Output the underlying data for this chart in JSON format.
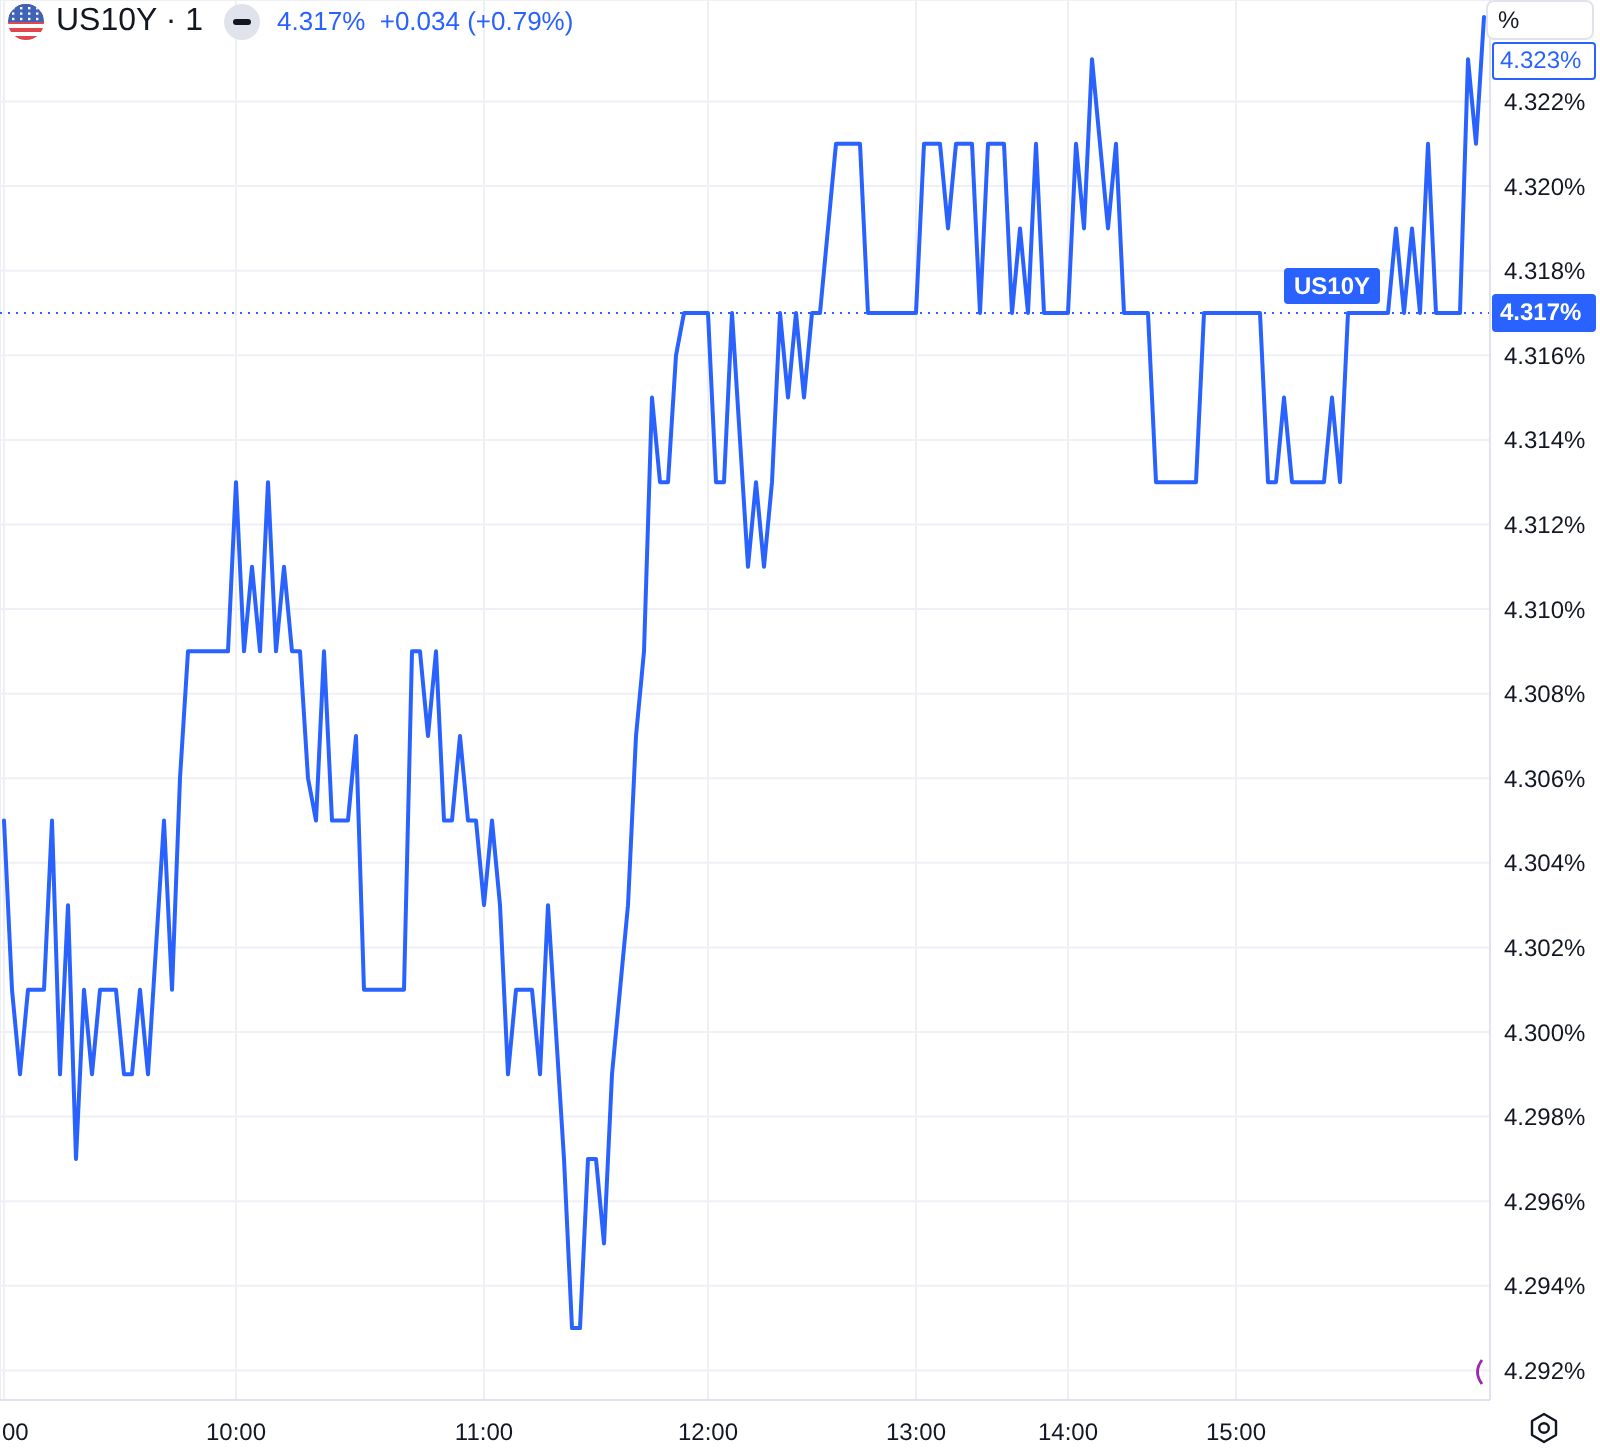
{
  "chart_data": {
    "type": "line",
    "title": "US10Y · 1",
    "subtitle": "4.317%  +0.034 (+0.79%)",
    "categories": [
      "00",
      null,
      null,
      null,
      null,
      null,
      null,
      null,
      null,
      null,
      null,
      null,
      null,
      null,
      null,
      null,
      null,
      null,
      null,
      null,
      null,
      null,
      null,
      null,
      null,
      null,
      null,
      null,
      null,
      "10:00",
      null,
      null,
      null,
      null,
      null,
      null,
      null,
      null,
      null,
      null,
      null,
      null,
      null,
      null,
      null,
      null,
      null,
      null,
      null,
      null,
      null,
      null,
      null,
      null,
      null,
      null,
      null,
      null,
      null,
      null,
      "11:00",
      null,
      null,
      null,
      null,
      null,
      null,
      null,
      null,
      null,
      null,
      null,
      null,
      null,
      null,
      null,
      null,
      null,
      null,
      null,
      null,
      null,
      null,
      null,
      null,
      null,
      null,
      null,
      "12:00",
      null,
      null,
      null,
      null,
      null,
      null,
      null,
      null,
      null,
      null,
      null,
      null,
      null,
      null,
      null,
      null,
      null,
      null,
      null,
      null,
      null,
      null,
      null,
      null,
      null,
      "13:00",
      null,
      null,
      null,
      null,
      null,
      null,
      null,
      null,
      null,
      null,
      null,
      null,
      null,
      null,
      null,
      null,
      null,
      null,
      "14:00",
      null,
      null,
      null,
      null,
      null,
      null,
      null,
      null,
      null,
      null,
      null,
      null,
      null,
      null,
      null,
      null,
      null,
      null,
      null,
      null,
      "15:00",
      null,
      null,
      null,
      null,
      null,
      null,
      null,
      null,
      null,
      null,
      null,
      null,
      null,
      null,
      null,
      null,
      null,
      null,
      null,
      null,
      null,
      null,
      null,
      null,
      null,
      null,
      null,
      null,
      null,
      null,
      null
    ],
    "series": [
      {
        "name": "US10Y",
        "color": "#2962ff",
        "values": [
          4.305,
          4.301,
          4.299,
          4.301,
          4.301,
          4.301,
          4.305,
          4.299,
          4.303,
          4.297,
          4.301,
          4.299,
          4.301,
          4.301,
          4.301,
          4.299,
          4.299,
          4.301,
          4.299,
          4.302,
          4.305,
          4.301,
          4.306,
          4.309,
          4.309,
          4.309,
          4.309,
          4.309,
          4.309,
          4.313,
          4.309,
          4.311,
          4.309,
          4.313,
          4.309,
          4.311,
          4.309,
          4.309,
          4.306,
          4.305,
          4.309,
          4.305,
          4.305,
          4.305,
          4.307,
          4.301,
          4.301,
          4.301,
          4.301,
          4.301,
          4.301,
          4.309,
          4.309,
          4.307,
          4.309,
          4.305,
          4.305,
          4.307,
          4.305,
          4.305,
          4.303,
          4.305,
          4.303,
          4.299,
          4.301,
          4.301,
          4.301,
          4.299,
          4.303,
          4.3,
          4.297,
          4.293,
          4.293,
          4.297,
          4.297,
          4.295,
          4.299,
          4.301,
          4.303,
          4.307,
          4.309,
          4.315,
          4.313,
          4.313,
          4.316,
          4.317,
          4.317,
          4.317,
          4.317,
          4.313,
          4.313,
          4.317,
          4.314,
          4.311,
          4.313,
          4.311,
          4.313,
          4.317,
          4.315,
          4.317,
          4.315,
          4.317,
          4.317,
          4.319,
          4.321,
          4.321,
          4.321,
          4.321,
          4.317,
          4.317,
          4.317,
          4.317,
          4.317,
          4.317,
          4.317,
          4.321,
          4.321,
          4.321,
          4.319,
          4.321,
          4.321,
          4.321,
          4.317,
          4.321,
          4.321,
          4.321,
          4.317,
          4.319,
          4.317,
          4.321,
          4.317,
          4.317,
          4.317,
          4.317,
          4.321,
          4.319,
          4.323,
          4.321,
          4.319,
          4.321,
          4.317,
          4.317,
          4.317,
          4.317,
          4.313,
          4.313,
          4.313,
          4.313,
          4.313,
          4.313,
          4.317,
          4.317,
          4.317,
          4.317,
          4.317,
          4.317,
          4.317,
          4.317,
          4.313,
          4.313,
          4.315,
          4.313,
          4.313,
          4.313,
          4.313,
          4.313,
          4.315,
          4.313,
          4.317,
          4.317,
          4.317,
          4.317,
          4.317,
          4.317,
          4.319,
          4.317,
          4.319,
          4.317,
          4.321,
          4.317,
          4.317,
          4.317,
          4.317,
          4.323,
          4.321,
          4.324
        ]
      }
    ],
    "ylim": [
      4.2913,
      4.3244
    ],
    "yticks": [
      {
        "value": 4.292,
        "label": "4.292%"
      },
      {
        "value": 4.294,
        "label": "4.294%"
      },
      {
        "value": 4.296,
        "label": "4.296%"
      },
      {
        "value": 4.298,
        "label": "4.298%"
      },
      {
        "value": 4.3,
        "label": "4.300%"
      },
      {
        "value": 4.302,
        "label": "4.302%"
      },
      {
        "value": 4.304,
        "label": "4.304%"
      },
      {
        "value": 4.306,
        "label": "4.306%"
      },
      {
        "value": 4.308,
        "label": "4.308%"
      },
      {
        "value": 4.31,
        "label": "4.310%"
      },
      {
        "value": 4.312,
        "label": "4.312%"
      },
      {
        "value": 4.314,
        "label": "4.314%"
      },
      {
        "value": 4.316,
        "label": "4.316%"
      },
      {
        "value": 4.318,
        "label": "4.318%"
      },
      {
        "value": 4.32,
        "label": "4.320%"
      },
      {
        "value": 4.322,
        "label": "4.322%"
      }
    ],
    "grid": true,
    "marker": "none",
    "line_style": "solid",
    "ref_lines": [
      {
        "axis": "y",
        "value": 4.317,
        "label": "4.317%",
        "color": "#2962ff",
        "line_style": "dotted"
      }
    ],
    "annotations": [
      "%",
      "4.323%"
    ]
  }
}
